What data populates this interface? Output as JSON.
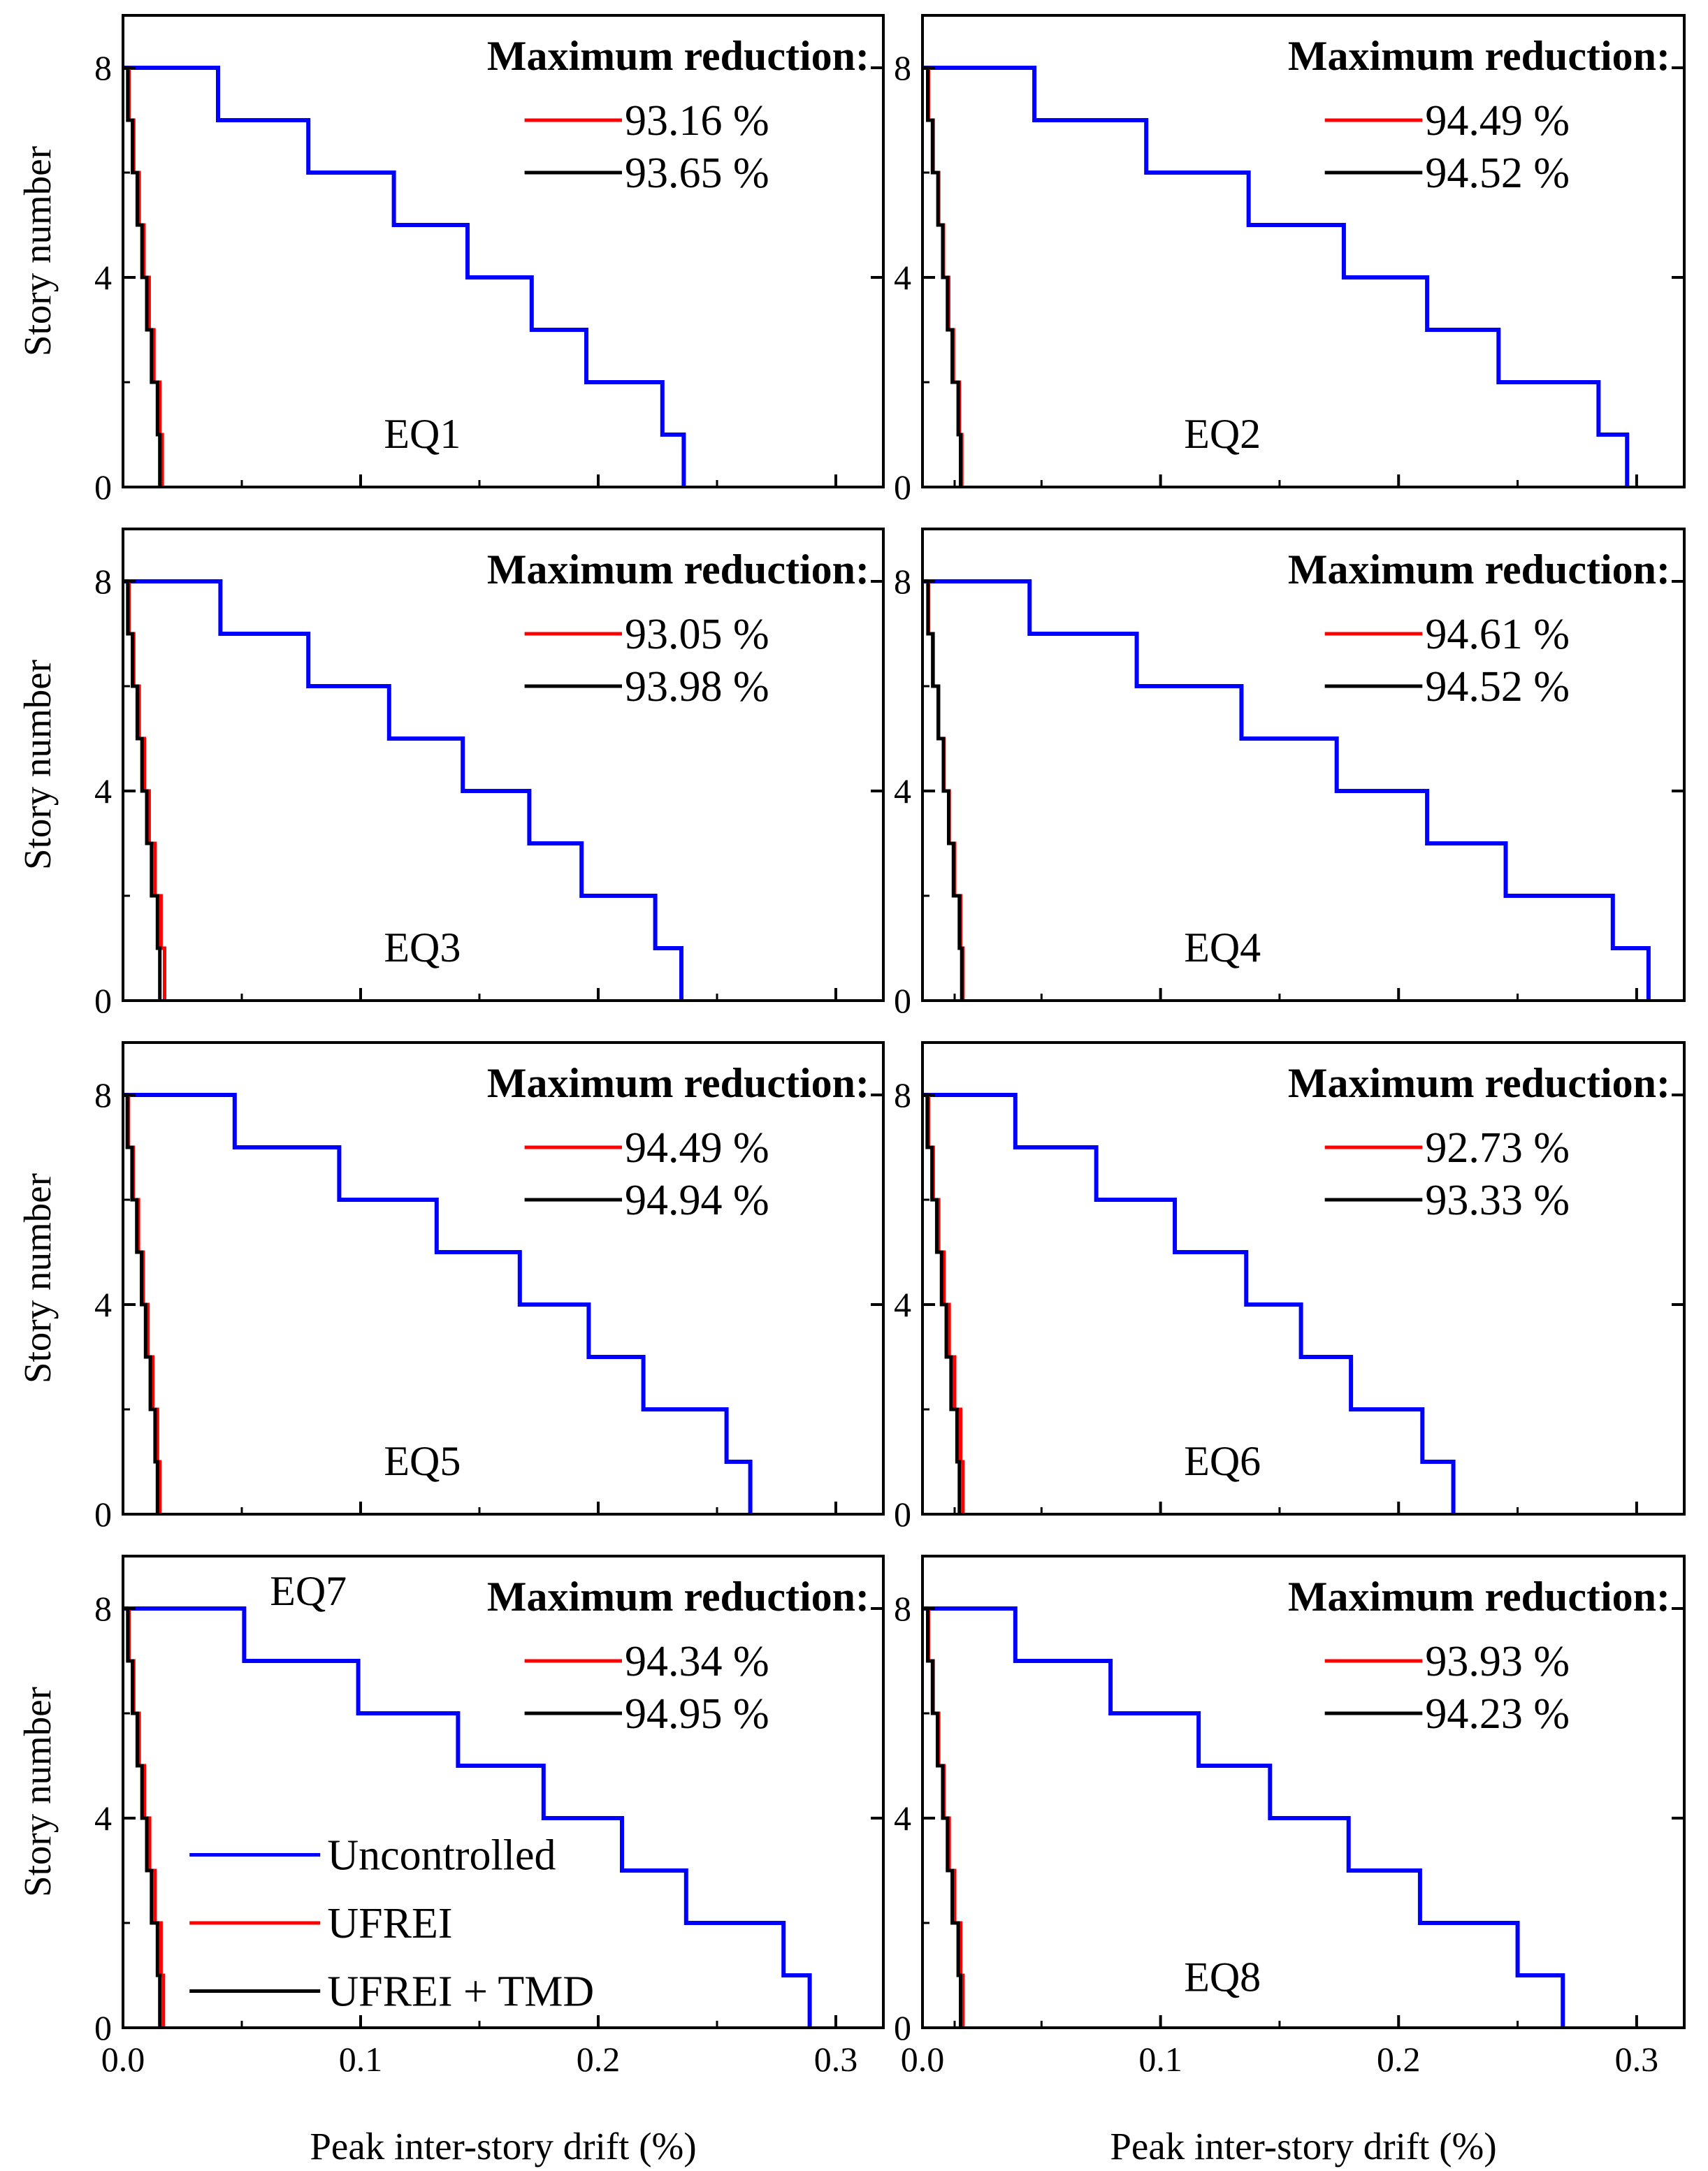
{
  "figure": {
    "xlabel": "Peak inter-story drift (%)",
    "ylabel": "Story number",
    "reduction_title": "Maximum reduction:"
  },
  "colors": {
    "uncontrolled": "#0000ff",
    "ufrei": "#ff0000",
    "ufrei_tmd": "#000000"
  },
  "legend": [
    {
      "label": "Uncontrolled",
      "color": "#0000ff"
    },
    {
      "label": "UFREI",
      "color": "#ff0000"
    },
    {
      "label": "UFREI + TMD",
      "color": "#000000"
    }
  ],
  "chart_data": [
    {
      "type": "line",
      "step": true,
      "panel": "EQ1",
      "xlim": [
        0,
        0.32
      ],
      "ylim": [
        0,
        9
      ],
      "xticks": [
        0.0,
        0.1,
        0.2,
        0.3
      ],
      "xtick_labels": [
        "0.0",
        "0.1",
        "0.2",
        "0.3"
      ],
      "yticks": [
        0,
        4,
        8
      ],
      "ytick_labels": [
        "0",
        "4",
        "8"
      ],
      "reductions": [
        "93.16 %",
        "93.65 %"
      ],
      "series": [
        {
          "name": "Uncontrolled",
          "values": [
            0.236,
            0.227,
            0.195,
            0.172,
            0.145,
            0.114,
            0.078,
            0.04
          ]
        },
        {
          "name": "UFREI",
          "values": [
            0.0165,
            0.0155,
            0.013,
            0.011,
            0.0088,
            0.0068,
            0.0045,
            0.0025
          ]
        },
        {
          "name": "UFREI + TMD",
          "values": [
            0.0155,
            0.0145,
            0.012,
            0.01,
            0.008,
            0.006,
            0.004,
            0.002
          ]
        }
      ]
    },
    {
      "type": "line",
      "step": true,
      "panel": "EQ2",
      "xlim": [
        0,
        0.32
      ],
      "ylim": [
        0,
        9
      ],
      "xticks": [
        0.0,
        0.1,
        0.2,
        0.3
      ],
      "xtick_labels": [
        "0.0",
        "0.1",
        "0.2",
        "0.3"
      ],
      "yticks": [
        0,
        4,
        8
      ],
      "ytick_labels": [
        "0",
        "4",
        "8"
      ],
      "reductions": [
        "94.49 %",
        "94.52 %"
      ],
      "series": [
        {
          "name": "Uncontrolled",
          "values": [
            0.296,
            0.284,
            0.242,
            0.212,
            0.177,
            0.137,
            0.094,
            0.047
          ]
        },
        {
          "name": "UFREI",
          "values": [
            0.0165,
            0.0155,
            0.013,
            0.011,
            0.0088,
            0.0068,
            0.0045,
            0.0025
          ]
        },
        {
          "name": "UFREI + TMD",
          "values": [
            0.016,
            0.015,
            0.0125,
            0.0105,
            0.0085,
            0.0065,
            0.0042,
            0.0022
          ]
        }
      ]
    },
    {
      "type": "line",
      "step": true,
      "panel": "EQ3",
      "xlim": [
        0,
        0.32
      ],
      "ylim": [
        0,
        9
      ],
      "xticks": [
        0.0,
        0.1,
        0.2,
        0.3
      ],
      "xtick_labels": [
        "0.0",
        "0.1",
        "0.2",
        "0.3"
      ],
      "yticks": [
        0,
        4,
        8
      ],
      "ytick_labels": [
        "0",
        "4",
        "8"
      ],
      "reductions": [
        "93.05 %",
        "93.98 %"
      ],
      "series": [
        {
          "name": "Uncontrolled",
          "values": [
            0.235,
            0.224,
            0.193,
            0.171,
            0.143,
            0.112,
            0.078,
            0.041
          ]
        },
        {
          "name": "UFREI",
          "values": [
            0.0175,
            0.016,
            0.0135,
            0.011,
            0.009,
            0.0068,
            0.0045,
            0.0025
          ]
        },
        {
          "name": "UFREI + TMD",
          "values": [
            0.0155,
            0.0145,
            0.012,
            0.01,
            0.008,
            0.006,
            0.004,
            0.002
          ]
        }
      ]
    },
    {
      "type": "line",
      "step": true,
      "panel": "EQ4",
      "xlim": [
        0,
        0.32
      ],
      "ylim": [
        0,
        9
      ],
      "xticks": [
        0.0,
        0.1,
        0.2,
        0.3
      ],
      "xtick_labels": [
        "0.0",
        "0.1",
        "0.2",
        "0.3"
      ],
      "yticks": [
        0,
        4,
        8
      ],
      "ytick_labels": [
        "0",
        "4",
        "8"
      ],
      "reductions": [
        "94.61 %",
        "94.52 %"
      ],
      "series": [
        {
          "name": "Uncontrolled",
          "values": [
            0.305,
            0.29,
            0.245,
            0.212,
            0.174,
            0.134,
            0.09,
            0.045
          ]
        },
        {
          "name": "UFREI",
          "values": [
            0.017,
            0.016,
            0.0135,
            0.0112,
            0.009,
            0.0068,
            0.0045,
            0.0025
          ]
        },
        {
          "name": "UFREI + TMD",
          "values": [
            0.0165,
            0.0155,
            0.013,
            0.011,
            0.0088,
            0.0066,
            0.0043,
            0.0023
          ]
        }
      ]
    },
    {
      "type": "line",
      "step": true,
      "panel": "EQ5",
      "xlim": [
        0,
        0.32
      ],
      "ylim": [
        0,
        9
      ],
      "xticks": [
        0.0,
        0.1,
        0.2,
        0.3
      ],
      "xtick_labels": [
        "0.0",
        "0.1",
        "0.2",
        "0.3"
      ],
      "yticks": [
        0,
        4,
        8
      ],
      "ytick_labels": [
        "0",
        "4",
        "8"
      ],
      "reductions": [
        "94.49 %",
        "94.94 %"
      ],
      "series": [
        {
          "name": "Uncontrolled",
          "values": [
            0.264,
            0.254,
            0.219,
            0.196,
            0.167,
            0.132,
            0.091,
            0.047
          ]
        },
        {
          "name": "UFREI",
          "values": [
            0.0155,
            0.0145,
            0.0125,
            0.0105,
            0.0085,
            0.0065,
            0.0043,
            0.0023
          ]
        },
        {
          "name": "UFREI + TMD",
          "values": [
            0.0145,
            0.0135,
            0.0115,
            0.0095,
            0.0078,
            0.0058,
            0.0038,
            0.0018
          ]
        }
      ]
    },
    {
      "type": "line",
      "step": true,
      "panel": "EQ6",
      "xlim": [
        0,
        0.32
      ],
      "ylim": [
        0,
        9
      ],
      "xticks": [
        0.0,
        0.1,
        0.2,
        0.3
      ],
      "xtick_labels": [
        "0.0",
        "0.1",
        "0.2",
        "0.3"
      ],
      "yticks": [
        0,
        4,
        8
      ],
      "ytick_labels": [
        "0",
        "4",
        "8"
      ],
      "reductions": [
        "92.73 %",
        "93.33 %"
      ],
      "series": [
        {
          "name": "Uncontrolled",
          "values": [
            0.223,
            0.21,
            0.18,
            0.159,
            0.136,
            0.106,
            0.073,
            0.039
          ]
        },
        {
          "name": "UFREI",
          "values": [
            0.017,
            0.016,
            0.0135,
            0.0112,
            0.009,
            0.0068,
            0.0045,
            0.0025
          ]
        },
        {
          "name": "UFREI + TMD",
          "values": [
            0.0155,
            0.0145,
            0.012,
            0.01,
            0.008,
            0.006,
            0.004,
            0.002
          ]
        }
      ]
    },
    {
      "type": "line",
      "step": true,
      "panel": "EQ7",
      "xlim": [
        0,
        0.32
      ],
      "ylim": [
        0,
        9
      ],
      "xticks": [
        0.0,
        0.1,
        0.2,
        0.3
      ],
      "xtick_labels": [
        "0.0",
        "0.1",
        "0.2",
        "0.3"
      ],
      "yticks": [
        0,
        4,
        8
      ],
      "ytick_labels": [
        "0",
        "4",
        "8"
      ],
      "reductions": [
        "94.34 %",
        "94.95 %"
      ],
      "series": [
        {
          "name": "Uncontrolled",
          "values": [
            0.289,
            0.278,
            0.237,
            0.21,
            0.177,
            0.141,
            0.099,
            0.051
          ]
        },
        {
          "name": "UFREI",
          "values": [
            0.017,
            0.016,
            0.0135,
            0.0112,
            0.009,
            0.0068,
            0.0045,
            0.0025
          ]
        },
        {
          "name": "UFREI + TMD",
          "values": [
            0.0155,
            0.0145,
            0.012,
            0.01,
            0.008,
            0.006,
            0.004,
            0.002
          ]
        }
      ]
    },
    {
      "type": "line",
      "step": true,
      "panel": "EQ8",
      "xlim": [
        0,
        0.32
      ],
      "ylim": [
        0,
        9
      ],
      "xticks": [
        0.0,
        0.1,
        0.2,
        0.3
      ],
      "xtick_labels": [
        "0.0",
        "0.1",
        "0.2",
        "0.3"
      ],
      "yticks": [
        0,
        4,
        8
      ],
      "ytick_labels": [
        "0",
        "4",
        "8"
      ],
      "reductions": [
        "93.93 %",
        "94.23 %"
      ],
      "series": [
        {
          "name": "Uncontrolled",
          "values": [
            0.269,
            0.25,
            0.209,
            0.179,
            0.146,
            0.116,
            0.079,
            0.039
          ]
        },
        {
          "name": "UFREI",
          "values": [
            0.017,
            0.016,
            0.0135,
            0.0112,
            0.009,
            0.0068,
            0.0045,
            0.0025
          ]
        },
        {
          "name": "UFREI + TMD",
          "values": [
            0.016,
            0.015,
            0.0125,
            0.0105,
            0.0085,
            0.0063,
            0.0042,
            0.0022
          ]
        }
      ]
    }
  ]
}
